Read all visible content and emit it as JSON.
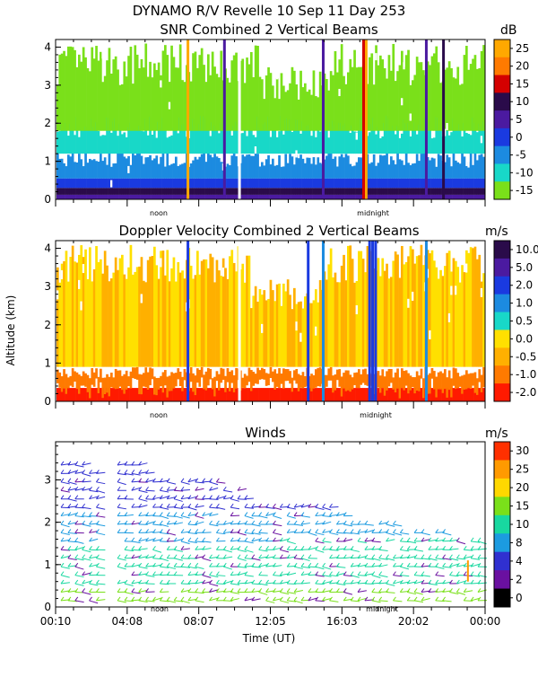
{
  "header": {
    "title_line1": "DYNAMO R/V Revelle  10 Sep 11 Day 253"
  },
  "chart_data": [
    {
      "type": "heatmap",
      "title": "SNR Combined 2 Vertical Beams",
      "ylabel": "",
      "ylim": [
        0,
        4.2
      ],
      "yticks": [
        "0",
        "1",
        "2",
        "3",
        "4"
      ],
      "colorbar_unit": "dB",
      "colorbar_labels": [
        "25",
        "20",
        "15",
        "10",
        "5",
        "0",
        "-5",
        "-10",
        "-15"
      ],
      "colorbar_colors": [
        "#ffa800",
        "#ff7a00",
        "#d40000",
        "#2a0b4a",
        "#4b1aa0",
        "#1a3ae0",
        "#1c8be0",
        "#18d8c8",
        "#7ae01a"
      ],
      "noon_label": "noon",
      "midnight_label": "midnight"
    },
    {
      "type": "heatmap",
      "title": "Doppler Velocity Combined 2 Vertical Beams",
      "ylabel": "Altitude (km)",
      "ylim": [
        0,
        4.2
      ],
      "yticks": [
        "0",
        "1",
        "2",
        "3",
        "4"
      ],
      "colorbar_unit": "m/s",
      "colorbar_labels": [
        "10.0",
        "5.0",
        "2.0",
        "1.0",
        "0.5",
        "0.0",
        "-0.5",
        "-1.0",
        "-2.0"
      ],
      "colorbar_colors": [
        "#2a0b4a",
        "#4b1aa0",
        "#1a3ae0",
        "#1c8be0",
        "#18d8c8",
        "#ffe000",
        "#ffb000",
        "#ff7a00",
        "#ff1a00"
      ],
      "noon_label": "noon",
      "midnight_label": "midnight"
    },
    {
      "type": "scatter",
      "title": "Winds",
      "xlabel": "Time (UT)",
      "ylim": [
        0,
        3.9
      ],
      "yticks": [
        "0",
        "1",
        "2",
        "3"
      ],
      "xticks": [
        "00:10",
        "04:08",
        "08:07",
        "12:05",
        "16:03",
        "20:02",
        "00:00"
      ],
      "colorbar_unit": "m/s",
      "colorbar_labels": [
        "30",
        "25",
        "20",
        "15",
        "10",
        "8",
        "4",
        "2",
        "0"
      ],
      "colorbar_colors": [
        "#ff3000",
        "#ff9a00",
        "#ffd800",
        "#7ae01a",
        "#18d8a0",
        "#1c9be0",
        "#3030d0",
        "#6a10a0",
        "#000000"
      ],
      "noon_label": "noon",
      "midnight_label": "midnight"
    }
  ]
}
